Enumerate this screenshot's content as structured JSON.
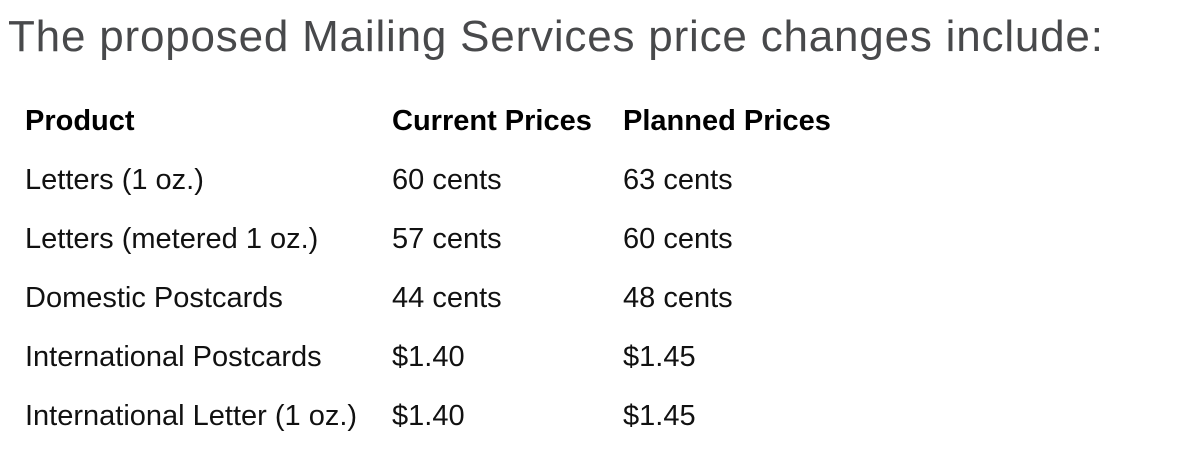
{
  "title": "The proposed Mailing Services price changes include:",
  "table": {
    "headers": [
      "Product",
      "Current Prices",
      "Planned Prices"
    ],
    "rows": [
      [
        "Letters (1 oz.)",
        "60 cents",
        "63 cents"
      ],
      [
        "Letters (metered 1 oz.)",
        "57 cents",
        "60 cents"
      ],
      [
        "Domestic Postcards",
        "44 cents",
        "48 cents"
      ],
      [
        "International Postcards",
        "$1.40",
        "$1.45"
      ],
      [
        "International Letter (1 oz.)",
        "$1.40",
        "$1.45"
      ]
    ]
  },
  "colors": {
    "title_text": "#48494b",
    "body_text": "#111111",
    "header_text": "#000000",
    "background": "#ffffff"
  }
}
